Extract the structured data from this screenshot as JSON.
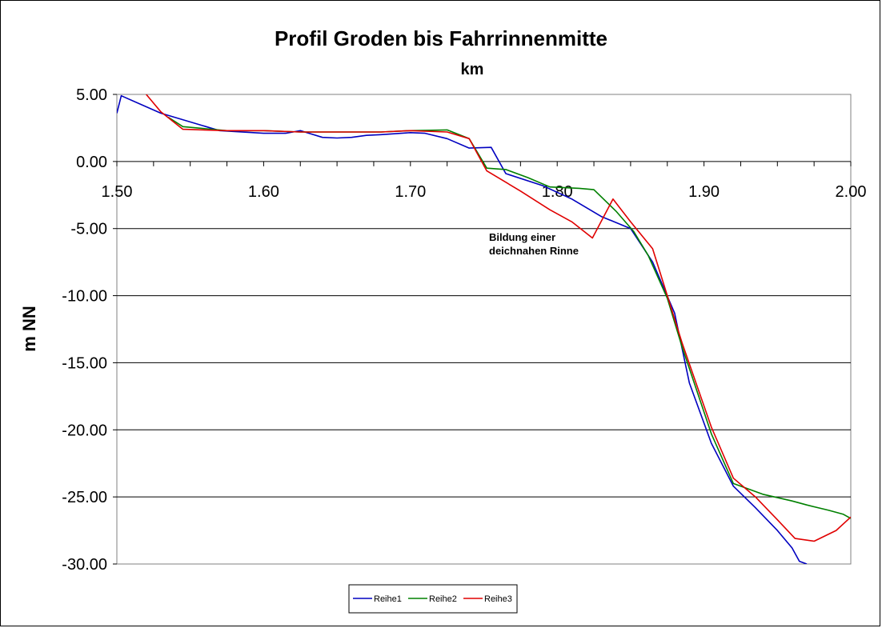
{
  "chart_data": {
    "type": "line",
    "title": "Profil Groden bis Fahrrinnenmitte",
    "subtitle": "km",
    "xlabel": "",
    "ylabel": "m NN",
    "xlim": [
      1.5,
      2.0
    ],
    "ylim": [
      -30,
      5
    ],
    "x_ticks": [
      "1.50",
      "1.60",
      "1.70",
      "1.80",
      "1.90",
      "2.00"
    ],
    "y_ticks": [
      "5.00",
      "0.00",
      "-5.00",
      "-10.00",
      "-15.00",
      "-20.00",
      "-25.00",
      "-30.00"
    ],
    "grid": "horizontal",
    "legend_position": "bottom",
    "annotation": [
      "Bildung einer",
      "deichnahen Rinne"
    ],
    "series": [
      {
        "name": "Reihe1",
        "color": "#0000c0",
        "points": [
          [
            1.5,
            3.6
          ],
          [
            1.503,
            4.9
          ],
          [
            1.53,
            3.6
          ],
          [
            1.57,
            2.3
          ],
          [
            1.6,
            2.1
          ],
          [
            1.615,
            2.1
          ],
          [
            1.625,
            2.3
          ],
          [
            1.64,
            1.8
          ],
          [
            1.65,
            1.75
          ],
          [
            1.66,
            1.8
          ],
          [
            1.67,
            1.95
          ],
          [
            1.68,
            2.0
          ],
          [
            1.7,
            2.15
          ],
          [
            1.71,
            2.1
          ],
          [
            1.725,
            1.7
          ],
          [
            1.74,
            1.0
          ],
          [
            1.755,
            1.05
          ],
          [
            1.765,
            -0.9
          ],
          [
            1.79,
            -1.8
          ],
          [
            1.81,
            -2.8
          ],
          [
            1.83,
            -4.1
          ],
          [
            1.85,
            -5.0
          ],
          [
            1.865,
            -7.5
          ],
          [
            1.88,
            -11.3
          ],
          [
            1.89,
            -16.5
          ],
          [
            1.905,
            -21.0
          ],
          [
            1.92,
            -24.2
          ],
          [
            1.935,
            -25.8
          ],
          [
            1.95,
            -27.5
          ],
          [
            1.96,
            -28.8
          ],
          [
            1.965,
            -29.8
          ],
          [
            1.97,
            -30.0
          ]
        ]
      },
      {
        "name": "Reihe2",
        "color": "#008000",
        "points": [
          [
            1.535,
            3.3
          ],
          [
            1.545,
            2.6
          ],
          [
            1.575,
            2.3
          ],
          [
            1.6,
            2.3
          ],
          [
            1.625,
            2.2
          ],
          [
            1.65,
            2.2
          ],
          [
            1.68,
            2.2
          ],
          [
            1.7,
            2.3
          ],
          [
            1.725,
            2.35
          ],
          [
            1.74,
            1.7
          ],
          [
            1.752,
            -0.5
          ],
          [
            1.765,
            -0.6
          ],
          [
            1.78,
            -1.2
          ],
          [
            1.795,
            -1.9
          ],
          [
            1.815,
            -2.0
          ],
          [
            1.825,
            -2.1
          ],
          [
            1.84,
            -3.7
          ],
          [
            1.852,
            -5.2
          ],
          [
            1.862,
            -7.0
          ],
          [
            1.875,
            -10.2
          ],
          [
            1.885,
            -13.8
          ],
          [
            1.905,
            -20.3
          ],
          [
            1.92,
            -24.0
          ],
          [
            1.94,
            -24.8
          ],
          [
            1.96,
            -25.3
          ],
          [
            1.97,
            -25.6
          ],
          [
            1.985,
            -26.0
          ],
          [
            1.995,
            -26.3
          ],
          [
            2.0,
            -26.6
          ]
        ]
      },
      {
        "name": "Reihe3",
        "color": "#e00000",
        "points": [
          [
            1.52,
            5.0
          ],
          [
            1.53,
            3.7
          ],
          [
            1.545,
            2.4
          ],
          [
            1.575,
            2.3
          ],
          [
            1.6,
            2.3
          ],
          [
            1.625,
            2.2
          ],
          [
            1.65,
            2.2
          ],
          [
            1.68,
            2.2
          ],
          [
            1.7,
            2.3
          ],
          [
            1.725,
            2.2
          ],
          [
            1.74,
            1.7
          ],
          [
            1.752,
            -0.7
          ],
          [
            1.775,
            -2.2
          ],
          [
            1.795,
            -3.6
          ],
          [
            1.81,
            -4.5
          ],
          [
            1.824,
            -5.7
          ],
          [
            1.838,
            -2.8
          ],
          [
            1.85,
            -4.5
          ],
          [
            1.865,
            -6.5
          ],
          [
            1.875,
            -10.0
          ],
          [
            1.885,
            -13.5
          ],
          [
            1.905,
            -19.8
          ],
          [
            1.92,
            -23.6
          ],
          [
            1.935,
            -25.0
          ],
          [
            1.95,
            -26.7
          ],
          [
            1.962,
            -28.1
          ],
          [
            1.975,
            -28.3
          ],
          [
            1.99,
            -27.5
          ],
          [
            2.0,
            -26.5
          ]
        ]
      }
    ]
  }
}
